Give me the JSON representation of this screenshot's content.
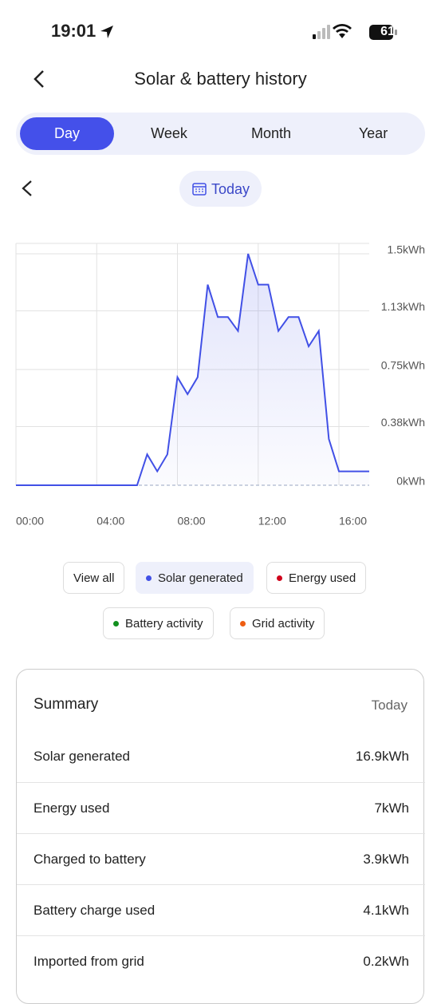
{
  "status_bar": {
    "time": "19:01",
    "battery": "61"
  },
  "header": {
    "title": "Solar & battery history"
  },
  "tabs": [
    "Day",
    "Week",
    "Month",
    "Year"
  ],
  "date_selector": {
    "label": "Today"
  },
  "chart_data": {
    "type": "line",
    "x": [
      0,
      6,
      6.5,
      7,
      7.5,
      8,
      8.5,
      9,
      9.5,
      10,
      10.5,
      11,
      11.5,
      12,
      12.5,
      13,
      13.5,
      14,
      14.5,
      15,
      15.5,
      16,
      17.5
    ],
    "series": [
      {
        "name": "Solar generated",
        "color": "#4150e6",
        "values": [
          0,
          0,
          0.2,
          0.09,
          0.2,
          0.7,
          0.59,
          0.7,
          1.3,
          1.09,
          1.09,
          1.0,
          1.5,
          1.3,
          1.3,
          1.0,
          1.09,
          1.09,
          0.9,
          1.0,
          0.3,
          0.09,
          0.09
        ]
      }
    ],
    "xlim": [
      0,
      17.5
    ],
    "xticks": [
      {
        "value": 0,
        "label": "00:00"
      },
      {
        "value": 4,
        "label": "04:00"
      },
      {
        "value": 8,
        "label": "08:00"
      },
      {
        "value": 12,
        "label": "12:00"
      },
      {
        "value": 16,
        "label": "16:00"
      }
    ],
    "ylim": [
      0,
      1.5
    ],
    "yticks": [
      {
        "value": 0,
        "label": "0kWh"
      },
      {
        "value": 0.38,
        "label": "0.38kWh"
      },
      {
        "value": 0.75,
        "label": "0.75kWh"
      },
      {
        "value": 1.13,
        "label": "1.13kWh"
      },
      {
        "value": 1.5,
        "label": "1.5kWh"
      }
    ],
    "grid": true,
    "filters": [
      {
        "label": "View all"
      },
      {
        "label": "Energy used",
        "color": "#d0021b"
      },
      {
        "label": "Battery activity",
        "color": "#12901e"
      },
      {
        "label": "Grid activity",
        "color": "#ee5d12"
      }
    ]
  },
  "summary": {
    "title": "Summary",
    "period": "Today",
    "rows": [
      [
        "Solar generated",
        "16.9kWh"
      ],
      [
        "Energy used",
        "7kWh"
      ],
      [
        "Charged to battery",
        "3.9kWh"
      ],
      [
        "Battery charge used",
        "4.1kWh"
      ],
      [
        "Imported from grid",
        "0.2kWh"
      ]
    ]
  }
}
